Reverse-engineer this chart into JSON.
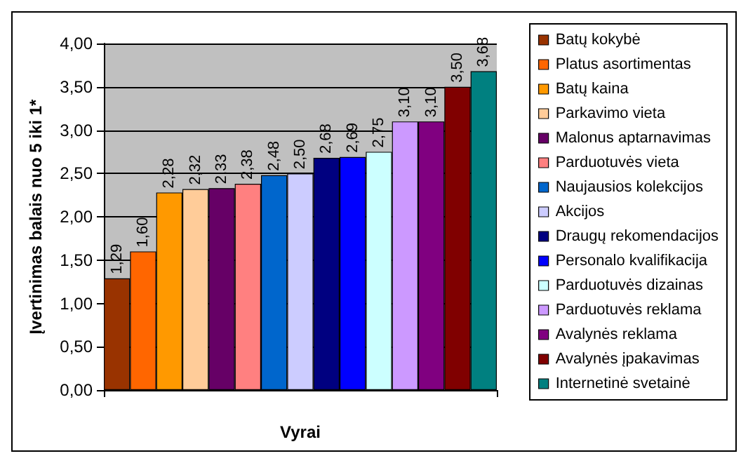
{
  "chart_data": {
    "type": "bar",
    "xlabel": "Vyrai",
    "ylabel": "Įvertinimas balais nuo 5 iki 1*",
    "categories": [
      null
    ],
    "series": [
      {
        "name": "Batų kokybė",
        "color": "#993300",
        "values": [
          1.29
        ],
        "value_labels": [
          "1,29"
        ]
      },
      {
        "name": "Platus asortimentas",
        "color": "#ff6600",
        "values": [
          1.6
        ],
        "value_labels": [
          "1,60"
        ]
      },
      {
        "name": "Batų kaina",
        "color": "#ff9900",
        "values": [
          2.28
        ],
        "value_labels": [
          "2,28"
        ]
      },
      {
        "name": "Parkavimo vieta",
        "color": "#ffcc99",
        "values": [
          2.32
        ],
        "value_labels": [
          "2,32"
        ]
      },
      {
        "name": "Malonus aptarnavimas",
        "color": "#660066",
        "values": [
          2.33
        ],
        "value_labels": [
          "2,33"
        ]
      },
      {
        "name": "Parduotuvės vieta",
        "color": "#ff8080",
        "values": [
          2.38
        ],
        "value_labels": [
          "2,38"
        ]
      },
      {
        "name": "Naujausios kolekcijos",
        "color": "#0066cc",
        "values": [
          2.48
        ],
        "value_labels": [
          "2,48"
        ]
      },
      {
        "name": "Akcijos",
        "color": "#ccccff",
        "values": [
          2.5
        ],
        "value_labels": [
          "2,50"
        ]
      },
      {
        "name": "Draugų rekomendacijos",
        "color": "#000080",
        "values": [
          2.68
        ],
        "value_labels": [
          "2,68"
        ]
      },
      {
        "name": "Personalo kvalifikacija",
        "color": "#0000ff",
        "values": [
          2.69
        ],
        "value_labels": [
          "2,69"
        ]
      },
      {
        "name": "Parduotuvės dizainas",
        "color": "#ccffff",
        "values": [
          2.75
        ],
        "value_labels": [
          "2,75"
        ]
      },
      {
        "name": "Parduotuvės reklama",
        "color": "#cc99ff",
        "values": [
          3.1
        ],
        "value_labels": [
          "3,10"
        ]
      },
      {
        "name": "Avalynės reklama",
        "color": "#800080",
        "values": [
          3.1
        ],
        "value_labels": [
          "3,10"
        ]
      },
      {
        "name": "Avalynės įpakavimas",
        "color": "#800000",
        "values": [
          3.5
        ],
        "value_labels": [
          "3,50"
        ]
      },
      {
        "name": "Internetinė svetainė",
        "color": "#008080",
        "values": [
          3.68
        ],
        "value_labels": [
          "3,68"
        ]
      }
    ],
    "ylim": [
      0,
      4
    ],
    "yticks": [
      {
        "value": 0,
        "label": "0,00"
      },
      {
        "value": 0.5,
        "label": "0,50"
      },
      {
        "value": 1,
        "label": "1,00"
      },
      {
        "value": 1.5,
        "label": "1,50"
      },
      {
        "value": 2,
        "label": "2,00"
      },
      {
        "value": 2.5,
        "label": "2,50"
      },
      {
        "value": 3,
        "label": "3,00"
      },
      {
        "value": 3.5,
        "label": "3,50"
      },
      {
        "value": 4,
        "label": "4,00"
      }
    ],
    "grid": "y",
    "legend": "right"
  }
}
